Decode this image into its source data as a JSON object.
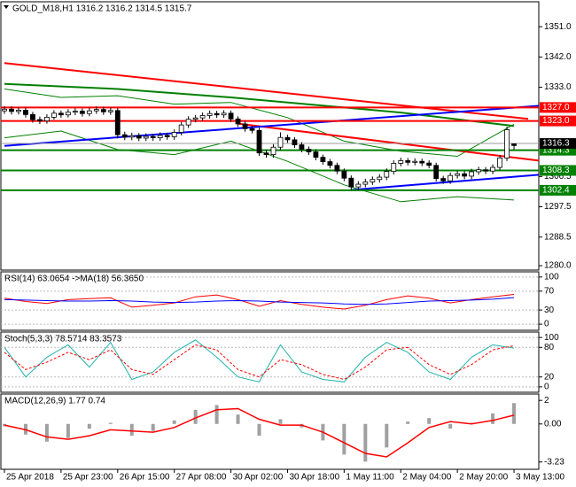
{
  "chart_data": [
    {
      "type": "candlestick",
      "title": "GOLD_M18,H1  1316.2 1316.2 1314.5 1315.7",
      "xlim": [
        -0.5,
        75.5
      ],
      "ylim": [
        1278.7,
        1358.4
      ],
      "yticks": [
        {
          "value": 1351,
          "label": "1351.0"
        },
        {
          "value": 1342,
          "label": "1342.0"
        },
        {
          "value": 1333,
          "label": "1333.0"
        },
        {
          "value": 1306.5,
          "label": "1306.5"
        },
        {
          "value": 1297.5,
          "label": "1297.5"
        },
        {
          "value": 1288.5,
          "label": "1288.5"
        },
        {
          "value": 1280,
          "label": "1280.0"
        }
      ],
      "open": [
        1326.0,
        1326.5,
        1325.8,
        1326.2,
        1324.9,
        1323.4,
        1323.0,
        1324.1,
        1325.3,
        1324.8,
        1325.6,
        1325.9,
        1325.2,
        1326.0,
        1326.4,
        1325.7,
        1326.1,
        1318.9,
        1318.2,
        1318.6,
        1317.9,
        1318.4,
        1318.0,
        1318.7,
        1318.3,
        1319.6,
        1321.8,
        1323.5,
        1323.9,
        1324.6,
        1325.2,
        1324.8,
        1325.3,
        1323.6,
        1322.1,
        1320.7,
        1320.2,
        1313.5,
        1313.0,
        1315.2,
        1318.1,
        1317.4,
        1315.9,
        1314.6,
        1313.8,
        1312.2,
        1310.9,
        1309.8,
        1308.1,
        1306.0,
        1303.4,
        1304.2,
        1304.9,
        1305.6,
        1306.3,
        1308.0,
        1310.4,
        1311.2,
        1310.7,
        1311.0,
        1310.5,
        1309.8,
        1305.9,
        1305.2,
        1306.8,
        1307.3,
        1306.6,
        1307.9,
        1308.5,
        1308.1,
        1309.2,
        1312.0,
        1316.2
      ],
      "high": [
        1327.4,
        1327.3,
        1327.1,
        1327.0,
        1325.7,
        1324.3,
        1325.0,
        1326.2,
        1326.1,
        1326.5,
        1326.8,
        1326.7,
        1326.9,
        1327.3,
        1327.2,
        1327.0,
        1326.9,
        1319.8,
        1319.5,
        1319.4,
        1319.3,
        1319.2,
        1319.6,
        1319.5,
        1320.5,
        1322.7,
        1324.4,
        1324.8,
        1325.5,
        1326.1,
        1326.0,
        1326.2,
        1326.1,
        1324.4,
        1322.9,
        1321.5,
        1321.0,
        1314.4,
        1316.1,
        1319.6,
        1318.9,
        1318.2,
        1316.7,
        1315.4,
        1314.6,
        1313.0,
        1311.7,
        1310.6,
        1308.9,
        1306.8,
        1305.1,
        1305.8,
        1306.5,
        1307.2,
        1308.9,
        1311.3,
        1312.1,
        1312.0,
        1311.9,
        1311.8,
        1311.3,
        1310.6,
        1306.7,
        1307.7,
        1308.2,
        1308.1,
        1308.8,
        1309.4,
        1309.3,
        1310.1,
        1312.9,
        1321.3,
        1316.2
      ],
      "low": [
        1325.1,
        1324.9,
        1324.9,
        1324.0,
        1322.5,
        1322.1,
        1322.2,
        1323.4,
        1323.9,
        1324.0,
        1324.7,
        1324.3,
        1324.4,
        1325.1,
        1324.8,
        1324.8,
        1317.8,
        1317.3,
        1317.3,
        1317.0,
        1317.0,
        1317.1,
        1317.1,
        1317.4,
        1317.4,
        1318.7,
        1320.9,
        1322.6,
        1323.0,
        1323.7,
        1323.9,
        1323.9,
        1322.7,
        1321.2,
        1319.8,
        1319.3,
        1312.6,
        1312.1,
        1312.1,
        1314.3,
        1316.5,
        1315.0,
        1313.7,
        1312.9,
        1311.3,
        1310.0,
        1308.9,
        1307.2,
        1305.1,
        1302.5,
        1302.5,
        1303.3,
        1304.0,
        1304.7,
        1305.4,
        1307.1,
        1309.5,
        1309.8,
        1309.8,
        1309.6,
        1308.9,
        1305.0,
        1304.3,
        1304.3,
        1305.9,
        1305.7,
        1305.7,
        1307.0,
        1307.2,
        1307.2,
        1308.3,
        1311.1,
        1314.5
      ],
      "close": [
        1326.5,
        1325.8,
        1326.2,
        1324.9,
        1323.4,
        1323.0,
        1324.1,
        1325.3,
        1324.8,
        1325.6,
        1325.9,
        1325.2,
        1326.0,
        1326.4,
        1325.7,
        1326.1,
        1318.9,
        1318.2,
        1318.6,
        1317.9,
        1318.4,
        1318.0,
        1318.7,
        1318.3,
        1319.6,
        1321.8,
        1323.5,
        1323.9,
        1324.6,
        1325.2,
        1324.8,
        1325.3,
        1323.6,
        1322.1,
        1320.7,
        1320.2,
        1313.5,
        1313.0,
        1315.2,
        1318.1,
        1317.4,
        1315.9,
        1314.6,
        1313.8,
        1312.2,
        1310.9,
        1309.8,
        1308.1,
        1306.0,
        1303.4,
        1304.2,
        1304.9,
        1305.6,
        1306.3,
        1308.0,
        1310.4,
        1311.2,
        1310.7,
        1311.0,
        1310.5,
        1309.8,
        1305.9,
        1305.2,
        1306.8,
        1307.3,
        1306.6,
        1307.9,
        1308.5,
        1308.1,
        1309.2,
        1312.0,
        1320.4,
        1315.7
      ],
      "overlays": [
        {
          "color": "#008000",
          "width": 1,
          "x": [
            0,
            8,
            16,
            24,
            32,
            40,
            48,
            56,
            64,
            72
          ],
          "values": [
            1332.5,
            1330.0,
            1330.5,
            1328.0,
            1328.5,
            1324.0,
            1317.0,
            1314.0,
            1312.5,
            1322.0
          ]
        },
        {
          "color": "#008000",
          "width": 1,
          "x": [
            0,
            8,
            16,
            24,
            32,
            40,
            48,
            56,
            64,
            72
          ],
          "values": [
            1318.0,
            1320.0,
            1314.5,
            1313.0,
            1317.0,
            1311.0,
            1304.0,
            1299.0,
            1300.5,
            1299.5
          ]
        },
        {
          "color": "#008000",
          "width": 2,
          "x": [
            0,
            16,
            32,
            48,
            56,
            64,
            72
          ],
          "values": [
            1334.0,
            1332.5,
            1330.0,
            1327.0,
            1325.5,
            1323.5,
            1321.5
          ]
        }
      ],
      "trend_lines": [
        {
          "color": "#ff0000",
          "x": [
            0,
            74
          ],
          "values": [
            1340.2,
            1323.6
          ]
        },
        {
          "color": "#ff0000",
          "x": [
            33,
            75.5
          ],
          "values": [
            1322.2,
            1311.2
          ]
        },
        {
          "color": "#0000ff",
          "x": [
            0,
            75.5
          ],
          "values": [
            1315.6,
            1327.5
          ]
        },
        {
          "color": "#0000ff",
          "x": [
            49,
            75.5
          ],
          "values": [
            1302.5,
            1307.0
          ]
        }
      ],
      "levels": [
        {
          "value": 1327,
          "label": "1327.0",
          "color": "#ff0000"
        },
        {
          "value": 1323,
          "label": "1323.0",
          "color": "#ff0000"
        },
        {
          "value": 1314.3,
          "label": "1314.3",
          "color": "#008000"
        },
        {
          "value": 1308.3,
          "label": "1308.3",
          "color": "#008000"
        },
        {
          "value": 1302.4,
          "label": "1302.4",
          "color": "#008000"
        }
      ],
      "bid": 1316.3
    },
    {
      "type": "line",
      "title": "RSI(14) 63.0654  ->MA(18) 56.3650",
      "ylim": [
        -13,
        111
      ],
      "yticks": [
        100,
        70,
        30,
        0
      ],
      "grid": true,
      "x": [
        0,
        3,
        6,
        9,
        12,
        15,
        18,
        21,
        24,
        27,
        30,
        33,
        36,
        39,
        42,
        45,
        48,
        51,
        54,
        57,
        60,
        63,
        66,
        69,
        72
      ],
      "series": [
        {
          "color": "#ff0000",
          "values": [
            55,
            48,
            44,
            52,
            54,
            56,
            36,
            40,
            45,
            58,
            62,
            52,
            38,
            50,
            42,
            36,
            32,
            40,
            52,
            60,
            55,
            45,
            52,
            58,
            63.1
          ]
        },
        {
          "color": "#0000ff",
          "values": [
            52,
            51,
            50,
            49,
            49,
            50,
            49,
            47,
            46,
            47,
            49,
            50,
            49,
            47,
            46,
            45,
            43,
            42,
            43,
            46,
            49,
            50,
            51,
            53,
            56.4
          ]
        }
      ]
    },
    {
      "type": "line",
      "title": "Stoch(5,3,3) 78.5714 83.3573",
      "ylim": [
        -11,
        111
      ],
      "yticks": [
        100,
        80,
        20,
        0
      ],
      "grid": true,
      "x": [
        0,
        3,
        6,
        9,
        12,
        15,
        18,
        21,
        24,
        27,
        30,
        33,
        36,
        39,
        42,
        45,
        48,
        51,
        54,
        57,
        60,
        63,
        66,
        69,
        72
      ],
      "series": [
        {
          "color": "#20b2aa",
          "values": [
            80,
            20,
            60,
            85,
            40,
            90,
            15,
            30,
            70,
            95,
            60,
            20,
            10,
            85,
            30,
            15,
            10,
            60,
            90,
            70,
            30,
            15,
            60,
            85,
            78.6
          ]
        },
        {
          "color": "#ff0000",
          "style": "dashed",
          "values": [
            70,
            35,
            50,
            70,
            55,
            75,
            35,
            25,
            55,
            85,
            75,
            35,
            20,
            55,
            45,
            25,
            15,
            40,
            75,
            80,
            45,
            25,
            45,
            75,
            83.4
          ]
        }
      ]
    },
    {
      "type": "macd",
      "title": "MACD(12,26,9) 1.77 0.74",
      "ylim": [
        -3.85,
        2.54
      ],
      "yticks": [
        2,
        {
          "value": 0,
          "label": "0.00"
        },
        {
          "value": -3.23,
          "label": "-3.23"
        }
      ],
      "x": [
        0,
        3,
        6,
        9,
        12,
        15,
        18,
        21,
        24,
        27,
        30,
        33,
        36,
        39,
        42,
        45,
        48,
        51,
        54,
        57,
        60,
        63,
        66,
        69,
        72
      ],
      "histogram": {
        "color": "#a0a0a0",
        "values": [
          -0.2,
          -0.9,
          -1.5,
          -1.2,
          -0.4,
          0.1,
          -1.0,
          -0.6,
          0.3,
          1.2,
          1.6,
          0.8,
          -1.0,
          0.4,
          -0.3,
          -1.4,
          -2.6,
          -3.2,
          -2.0,
          0.2,
          0.5,
          -0.4,
          0.1,
          0.9,
          1.77
        ]
      },
      "signal": {
        "color": "#ff0000",
        "values": [
          -0.1,
          -0.5,
          -1.1,
          -1.3,
          -1.0,
          -0.5,
          -0.6,
          -0.7,
          -0.3,
          0.5,
          1.2,
          1.3,
          0.4,
          -0.1,
          -0.1,
          -0.7,
          -1.6,
          -2.5,
          -2.8,
          -1.6,
          -0.3,
          0.2,
          0.0,
          0.3,
          0.74
        ]
      },
      "xticks": [
        {
          "value": 0,
          "label": "25 Apr 2018"
        },
        {
          "value": 8,
          "label": "25 Apr 23:00"
        },
        {
          "value": 16,
          "label": "26 Apr 15:00"
        },
        {
          "value": 24,
          "label": "27 Apr 08:00"
        },
        {
          "value": 32,
          "label": "30 Apr 02:00"
        },
        {
          "value": 40,
          "label": "30 Apr 18:00"
        },
        {
          "value": 48,
          "label": "1 May 11:00"
        },
        {
          "value": 56,
          "label": "2 May 04:00"
        },
        {
          "value": 64,
          "label": "2 May 20:00"
        },
        {
          "value": 72,
          "label": "3 May 13:00"
        }
      ]
    }
  ]
}
